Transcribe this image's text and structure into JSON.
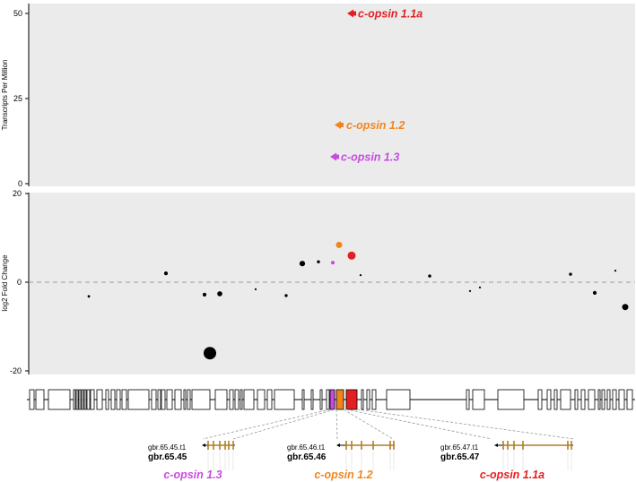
{
  "chart_data": [
    {
      "type": "scatter",
      "panel": "expression",
      "ylabel": "Transcripts Per Million",
      "ylim": [
        0,
        55
      ],
      "yticks": [
        0,
        25,
        50
      ],
      "grid": false,
      "points": [
        {
          "label": "c-opsin 1.1a",
          "y": 50,
          "color": "#e41f22"
        },
        {
          "label": "c-opsin 1.2",
          "y": 17.5,
          "color": "#f0851f"
        },
        {
          "label": "c-opsin 1.3",
          "y": 8.2,
          "color": "#c84be0"
        }
      ]
    },
    {
      "type": "scatter",
      "panel": "differential",
      "ylabel": "log2 Fold Change",
      "ylim": [
        -21,
        20
      ],
      "yticks": [
        -20,
        0,
        20
      ],
      "reference_line": 0,
      "grid": false,
      "x_unit": "gene index",
      "points": [
        {
          "x": 1,
          "y": -3.2,
          "size": 1,
          "color": "#000000"
        },
        {
          "x": 2,
          "y": 2.0,
          "size": 1.5,
          "color": "#000000"
        },
        {
          "x": 3,
          "y": -2.8,
          "size": 1.5,
          "color": "#000000"
        },
        {
          "x": 4,
          "y": -16.0,
          "size": 5,
          "color": "#000000"
        },
        {
          "x": 5,
          "y": -2.6,
          "size": 2,
          "color": "#000000"
        },
        {
          "x": 6,
          "y": -1.6,
          "size": 0.8,
          "color": "#000000"
        },
        {
          "x": 7,
          "y": -3.0,
          "size": 1.2,
          "color": "#000000"
        },
        {
          "x": 8,
          "y": 4.2,
          "size": 2.2,
          "color": "#000000"
        },
        {
          "x": 9,
          "y": 4.6,
          "size": 1.2,
          "color": "#000000"
        },
        {
          "x": 10,
          "y": 4.4,
          "size": 1.5,
          "color": "#c84be0",
          "label": "c-opsin 1.3"
        },
        {
          "x": 11,
          "y": 8.4,
          "size": 2.5,
          "color": "#f0851f",
          "label": "c-opsin 1.2"
        },
        {
          "x": 12,
          "y": 6.0,
          "size": 3.2,
          "color": "#e41f22",
          "label": "c-opsin 1.1a"
        },
        {
          "x": 13,
          "y": 1.6,
          "size": 0.8,
          "color": "#000000"
        },
        {
          "x": 14,
          "y": 1.4,
          "size": 1.2,
          "color": "#000000"
        },
        {
          "x": 15,
          "y": -2.0,
          "size": 0.8,
          "color": "#000000"
        },
        {
          "x": 16,
          "y": -1.2,
          "size": 0.8,
          "color": "#000000"
        },
        {
          "x": 17,
          "y": 1.8,
          "size": 1.2,
          "color": "#000000"
        },
        {
          "x": 18,
          "y": -2.4,
          "size": 1.5,
          "color": "#000000"
        },
        {
          "x": 19,
          "y": 2.6,
          "size": 0.8,
          "color": "#000000"
        },
        {
          "x": 20,
          "y": -5.6,
          "size": 2.5,
          "color": "#000000"
        }
      ]
    }
  ],
  "labels": {
    "opsin_11a": "c-opsin 1.1a",
    "opsin_12": "c-opsin 1.2",
    "opsin_13": "c-opsin 1.3"
  },
  "genes": [
    {
      "transcript": "gbr.65.45.t1",
      "gene": "gbr.65.45",
      "name": "c-opsin 1.3",
      "color": "#c84be0"
    },
    {
      "transcript": "gbr.65.46.t1",
      "gene": "gbr.65.46",
      "name": "c-opsin 1.2",
      "color": "#f0851f"
    },
    {
      "transcript": "gbr.65.47.t1",
      "gene": "gbr.65.47",
      "name": "c-opsin 1.1a",
      "color": "#e41f22"
    }
  ],
  "colors": {
    "panel_bg": "#ebebeb",
    "exon": "#b07d22",
    "opsin_11a": "#e41f22",
    "opsin_12": "#f0851f",
    "opsin_13": "#c84be0"
  }
}
